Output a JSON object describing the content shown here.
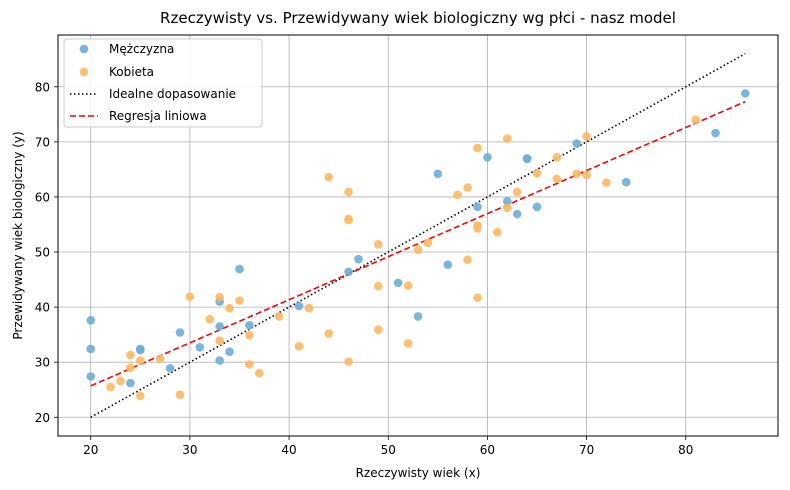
{
  "chart_data": {
    "type": "scatter",
    "title": "Rzeczywisty vs. Przewidywany wiek biologiczny wg płci - nasz model",
    "xlabel": "Rzeczywisty wiek (x)",
    "ylabel": "Przewidywany wiek biologiczny (y)",
    "xlim": [
      16.7,
      89.3
    ],
    "ylim": [
      16.6,
      89.4
    ],
    "xticks": [
      20,
      30,
      40,
      50,
      60,
      70,
      80
    ],
    "yticks": [
      20,
      30,
      40,
      50,
      60,
      70,
      80
    ],
    "grid": true,
    "legend_position": "top-left",
    "series": [
      {
        "name": "Mężczyzna",
        "color": "#6baed6",
        "points": [
          [
            20,
            37.6
          ],
          [
            20,
            32.4
          ],
          [
            20,
            27.4
          ],
          [
            24,
            26.2
          ],
          [
            25,
            32.2
          ],
          [
            25,
            32.4
          ],
          [
            28,
            28.9
          ],
          [
            29,
            35.4
          ],
          [
            31,
            32.7
          ],
          [
            33,
            41.0
          ],
          [
            33,
            36.5
          ],
          [
            33,
            30.3
          ],
          [
            34,
            31.9
          ],
          [
            35,
            46.9
          ],
          [
            36,
            36.7
          ],
          [
            41,
            40.2
          ],
          [
            46,
            46.4
          ],
          [
            47,
            48.7
          ],
          [
            51,
            44.4
          ],
          [
            53,
            38.3
          ],
          [
            55,
            64.2
          ],
          [
            56,
            47.7
          ],
          [
            59,
            58.2
          ],
          [
            60,
            67.2
          ],
          [
            62,
            59.2
          ],
          [
            63,
            56.9
          ],
          [
            64,
            66.9
          ],
          [
            64,
            67.0
          ],
          [
            65,
            58.2
          ],
          [
            69,
            69.7
          ],
          [
            74,
            62.7
          ],
          [
            83,
            71.6
          ],
          [
            86,
            78.8
          ]
        ]
      },
      {
        "name": "Kobieta",
        "color": "#fdb863",
        "points": [
          [
            22,
            25.5
          ],
          [
            23,
            26.6
          ],
          [
            24,
            31.3
          ],
          [
            24,
            29.0
          ],
          [
            25,
            30.3
          ],
          [
            25,
            23.9
          ],
          [
            27,
            30.6
          ],
          [
            29,
            24.1
          ],
          [
            30,
            41.9
          ],
          [
            32,
            37.8
          ],
          [
            33,
            41.8
          ],
          [
            33,
            33.9
          ],
          [
            34,
            39.8
          ],
          [
            35,
            41.2
          ],
          [
            36,
            34.9
          ],
          [
            36,
            29.6
          ],
          [
            37,
            28.0
          ],
          [
            39,
            38.3
          ],
          [
            41,
            32.9
          ],
          [
            42,
            39.8
          ],
          [
            44,
            63.6
          ],
          [
            44,
            35.2
          ],
          [
            46,
            60.9
          ],
          [
            46,
            56.0
          ],
          [
            46,
            55.8
          ],
          [
            46,
            30.1
          ],
          [
            49,
            51.4
          ],
          [
            49,
            43.8
          ],
          [
            49,
            35.9
          ],
          [
            52,
            43.9
          ],
          [
            52,
            33.4
          ],
          [
            53,
            50.4
          ],
          [
            54,
            51.7
          ],
          [
            57,
            60.4
          ],
          [
            58,
            61.7
          ],
          [
            58,
            48.6
          ],
          [
            59,
            68.9
          ],
          [
            59,
            54.8
          ],
          [
            59,
            54.3
          ],
          [
            59,
            41.7
          ],
          [
            61,
            53.6
          ],
          [
            62,
            70.6
          ],
          [
            62,
            58.0
          ],
          [
            63,
            60.9
          ],
          [
            65,
            64.3
          ],
          [
            67,
            67.2
          ],
          [
            67,
            63.3
          ],
          [
            69,
            64.2
          ],
          [
            70,
            71.0
          ],
          [
            70,
            64.0
          ],
          [
            72,
            62.6
          ],
          [
            81,
            74.0
          ]
        ]
      }
    ],
    "lines": [
      {
        "name": "Idealne dopasowanie",
        "color": "#000000",
        "style": "dotted",
        "points": [
          [
            20,
            20
          ],
          [
            86,
            86
          ]
        ]
      },
      {
        "name": "Regresja liniowa",
        "color": "#ff0000",
        "style": "dashed",
        "points": [
          [
            20,
            25.7
          ],
          [
            86,
            77.3
          ]
        ]
      }
    ]
  }
}
